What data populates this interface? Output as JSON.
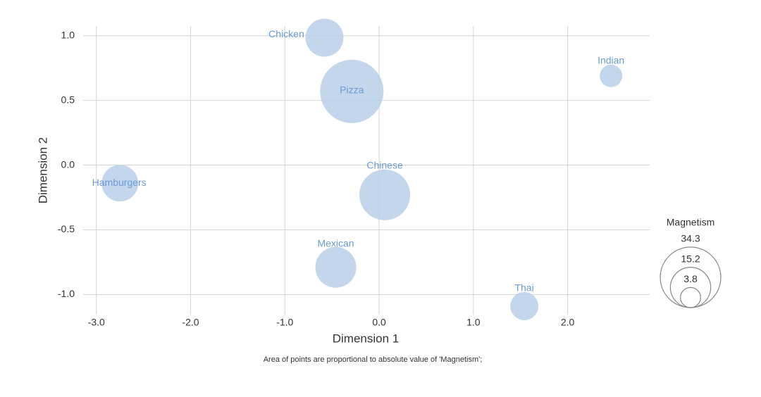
{
  "chart_data": {
    "type": "bubble",
    "x_label": "Dimension 1",
    "y_label": "Dimension 2",
    "caption": "Area of points are proportional to absolute value of 'Magnetism';",
    "labels": [
      "Chicken",
      "Pizza",
      "Indian",
      "Hamburgers",
      "Chinese",
      "Mexican",
      "Thai"
    ],
    "x": [
      -0.58,
      -0.29,
      2.46,
      -2.75,
      0.06,
      -0.46,
      1.54
    ],
    "values": [
      0.985,
      0.57,
      0.69,
      -0.14,
      -0.23,
      -0.79,
      -1.09
    ],
    "sizes": [
      13.5,
      37.6,
      4.75,
      12.5,
      24.1,
      15.6,
      7.4
    ],
    "color": "#b8cfe8",
    "label_color": "#6a9bd1",
    "xlim": [
      -3.14,
      2.87
    ],
    "xticks": [
      {
        "value": -3,
        "label": "-3.0"
      },
      {
        "value": -2,
        "label": "-2.0"
      },
      {
        "value": -1,
        "label": "-1.0"
      },
      {
        "value": 0,
        "label": "0.0"
      },
      {
        "value": 1,
        "label": "1.0"
      },
      {
        "value": 2,
        "label": "2.0"
      }
    ],
    "ylim": [
      -1.156,
      1.075
    ],
    "yticks": [
      {
        "value": -1,
        "label": "-1.0"
      },
      -0.5,
      {
        "value": 0,
        "label": "0.0"
      },
      0.5,
      {
        "value": 1,
        "label": "1.0"
      }
    ],
    "grid": true,
    "size_legend": {
      "title": "Magnetism",
      "values": [
        34.3,
        15.2,
        3.8
      ]
    }
  }
}
